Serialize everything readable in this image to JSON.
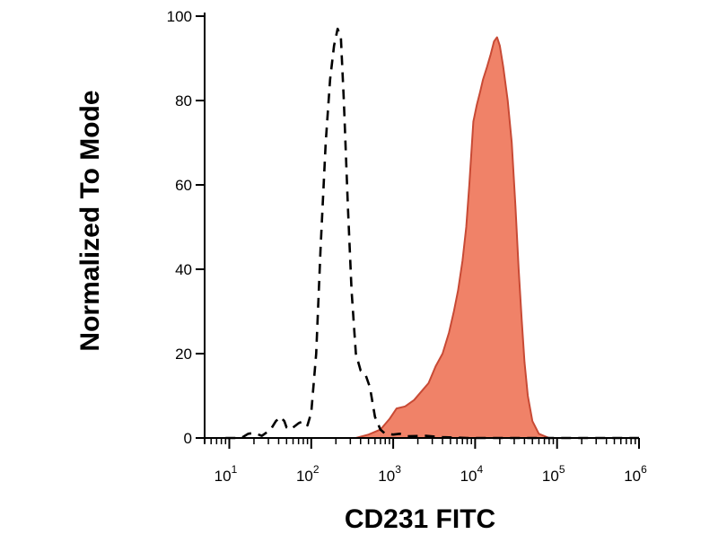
{
  "chart_data": {
    "type": "area",
    "title": "",
    "xlabel": "CD231 FITC",
    "ylabel": "Normalized To Mode",
    "xscale": "log",
    "xlim": [
      5,
      1000000
    ],
    "ylim": [
      0,
      100
    ],
    "grid": false,
    "legend": "none",
    "y_ticks": [
      0,
      20,
      40,
      60,
      80,
      100
    ],
    "x_ticks": [
      {
        "base": "10",
        "exp": "1",
        "value": 10
      },
      {
        "base": "10",
        "exp": "2",
        "value": 100
      },
      {
        "base": "10",
        "exp": "3",
        "value": 1000
      },
      {
        "base": "10",
        "exp": "4",
        "value": 10000
      },
      {
        "base": "10",
        "exp": "5",
        "value": 100000
      },
      {
        "base": "10",
        "exp": "6",
        "value": 1000000
      }
    ],
    "series": [
      {
        "style": "dashed-outline",
        "color": "#000000",
        "points": [
          [
            9,
            0
          ],
          [
            14,
            0
          ],
          [
            17,
            1
          ],
          [
            20,
            1.2
          ],
          [
            25,
            0.5
          ],
          [
            32,
            2
          ],
          [
            37,
            4
          ],
          [
            42,
            5
          ],
          [
            47,
            4
          ],
          [
            50,
            2.5
          ],
          [
            55,
            2
          ],
          [
            60,
            2.5
          ],
          [
            70,
            3.5
          ],
          [
            80,
            4
          ],
          [
            90,
            3
          ],
          [
            100,
            6
          ],
          [
            115,
            20
          ],
          [
            130,
            45
          ],
          [
            150,
            70
          ],
          [
            170,
            85
          ],
          [
            190,
            93
          ],
          [
            210,
            97
          ],
          [
            230,
            95
          ],
          [
            250,
            80
          ],
          [
            280,
            55
          ],
          [
            310,
            35
          ],
          [
            350,
            20
          ],
          [
            400,
            16
          ],
          [
            460,
            15
          ],
          [
            520,
            12
          ],
          [
            600,
            5
          ],
          [
            700,
            2
          ],
          [
            800,
            1
          ],
          [
            1000,
            0.8
          ],
          [
            1200,
            1
          ],
          [
            1500,
            0.4
          ],
          [
            2500,
            0.5
          ],
          [
            4000,
            0.2
          ],
          [
            8000,
            0
          ],
          [
            30000,
            0
          ],
          [
            100000,
            0
          ],
          [
            1000000,
            0
          ]
        ]
      },
      {
        "style": "filled",
        "color": "#f08268",
        "stroke": "#c84a35",
        "points": [
          [
            200,
            0
          ],
          [
            350,
            0
          ],
          [
            500,
            0.8
          ],
          [
            700,
            2
          ],
          [
            900,
            4.5
          ],
          [
            1100,
            7
          ],
          [
            1400,
            7.5
          ],
          [
            1800,
            9
          ],
          [
            2200,
            11
          ],
          [
            2700,
            13
          ],
          [
            3300,
            17
          ],
          [
            4000,
            20
          ],
          [
            4800,
            25
          ],
          [
            5500,
            30
          ],
          [
            6200,
            35
          ],
          [
            7000,
            42
          ],
          [
            7800,
            50
          ],
          [
            8500,
            60
          ],
          [
            9500,
            75
          ],
          [
            10500,
            79
          ],
          [
            11500,
            82
          ],
          [
            12500,
            85
          ],
          [
            14000,
            88
          ],
          [
            15500,
            91
          ],
          [
            17000,
            94
          ],
          [
            18500,
            95
          ],
          [
            20000,
            93
          ],
          [
            22000,
            88
          ],
          [
            25000,
            80
          ],
          [
            28000,
            70
          ],
          [
            31000,
            55
          ],
          [
            34000,
            40
          ],
          [
            37000,
            28
          ],
          [
            40000,
            18
          ],
          [
            44000,
            10
          ],
          [
            50000,
            4
          ],
          [
            60000,
            1
          ],
          [
            80000,
            0
          ],
          [
            150000,
            0
          ]
        ]
      }
    ]
  }
}
